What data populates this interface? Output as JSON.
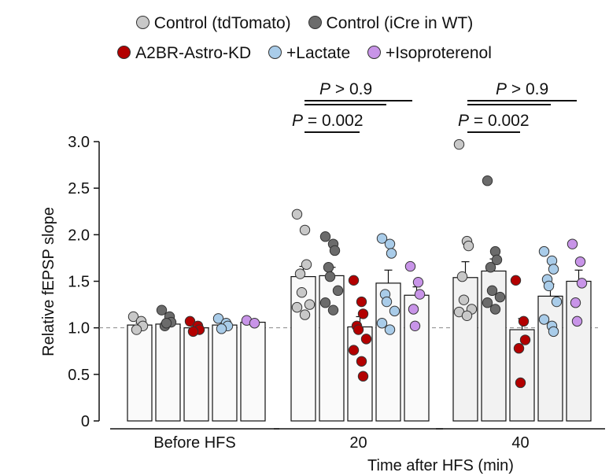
{
  "chart_data": {
    "type": "bar",
    "title": "",
    "xlabel": "Time after HFS (min)",
    "ylabel": "Relative fEPSP slope",
    "ylim": [
      0,
      3.0
    ],
    "yticks": [
      "0",
      "0.5",
      "1.0",
      "1.5",
      "2.0",
      "2.5",
      "3.0"
    ],
    "reference_line": 1.0,
    "categories": [
      "Before HFS",
      "20",
      "40"
    ],
    "series": [
      {
        "name": "Control (tdTomato)",
        "color": "#c8c8c8",
        "values": [
          1.03,
          1.55,
          1.54
        ],
        "error": [
          0.02,
          0.11,
          0.17
        ],
        "points": [
          [
            1.12,
            1.07,
            1.02,
            0.98
          ],
          [
            2.22,
            2.05,
            1.68,
            1.58,
            1.38,
            1.25,
            1.22,
            1.14
          ],
          [
            2.97,
            1.93,
            1.88,
            1.55,
            1.3,
            1.2,
            1.17,
            1.13
          ]
        ]
      },
      {
        "name": "Control (iCre in WT)",
        "color": "#6b6b6b",
        "values": [
          1.04,
          1.56,
          1.61
        ],
        "error": [
          0.03,
          0.09,
          0.13
        ],
        "points": [
          [
            1.19,
            1.12,
            1.06,
            1.02,
            1.05
          ],
          [
            1.98,
            1.9,
            1.83,
            1.65,
            1.55,
            1.4,
            1.27,
            1.19
          ],
          [
            2.58,
            1.82,
            1.73,
            1.65,
            1.4,
            1.33,
            1.27,
            1.2
          ]
        ]
      },
      {
        "name": "A2BR-Astro-KD",
        "color": "#b30000",
        "values": [
          1.0,
          1.01,
          0.98
        ],
        "error": [
          0.02,
          0.11,
          0.12
        ],
        "points": [
          [
            1.07,
            1.02,
            0.98,
            0.96
          ],
          [
            1.51,
            1.28,
            1.15,
            1.02,
            0.98,
            0.88,
            0.76,
            0.64,
            0.48
          ],
          [
            1.51,
            1.07,
            0.87,
            0.78,
            0.41
          ]
        ]
      },
      {
        "name": "+Lactate",
        "color": "#a9cce9",
        "values": [
          1.03,
          1.48,
          1.34
        ],
        "error": [
          0.02,
          0.14,
          0.13
        ],
        "points": [
          [
            1.1,
            1.05,
            1.02,
            0.99
          ],
          [
            1.96,
            1.9,
            1.8,
            1.36,
            1.28,
            1.18,
            1.05,
            0.98
          ],
          [
            1.82,
            1.72,
            1.63,
            1.52,
            1.45,
            1.28,
            1.09,
            1.02,
            0.96
          ]
        ]
      },
      {
        "name": "+Isoproterenol",
        "color": "#c894e8",
        "values": [
          1.06,
          1.35,
          1.5
        ],
        "error": [
          0.01,
          0.09,
          0.12
        ],
        "points": [
          [
            1.08,
            1.05
          ],
          [
            1.66,
            1.49,
            1.36,
            1.2,
            1.02
          ],
          [
            1.9,
            1.71,
            1.48,
            1.27,
            1.07
          ]
        ]
      }
    ],
    "annotations": [
      {
        "text_p": "P",
        "text_rest": " > 0.9",
        "group": "20"
      },
      {
        "text_p": "P",
        "text_rest": " = 0.002",
        "group": "20"
      },
      {
        "text_p": "P",
        "text_rest": " > 0.9",
        "group": "40"
      },
      {
        "text_p": "P",
        "text_rest": " = 0.002",
        "group": "40"
      }
    ],
    "legend_placement": "top"
  }
}
